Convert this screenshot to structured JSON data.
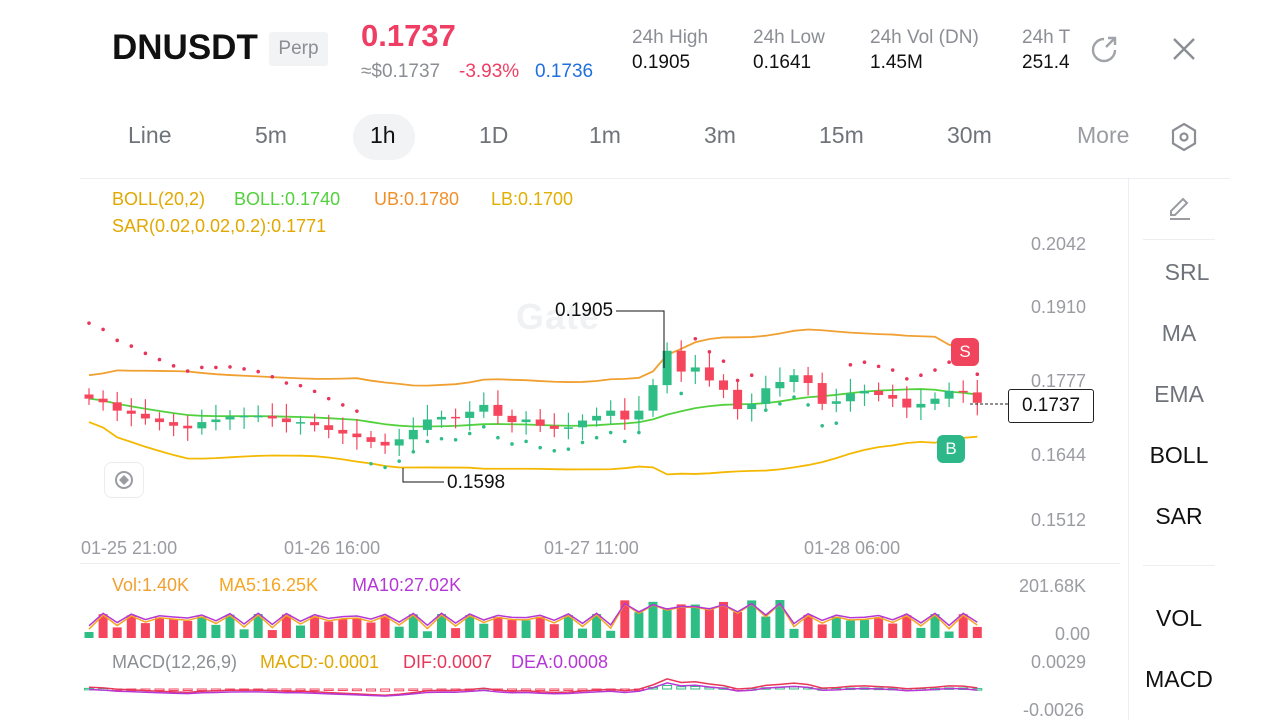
{
  "header": {
    "symbol": "DNUSDT",
    "type_badge": "Perp",
    "last_price": "0.1737",
    "usd_price": "≈$0.1737",
    "change_pct": "-3.93%",
    "mark_price": "0.1736",
    "stats": [
      {
        "label": "24h  High",
        "value": "0.1905"
      },
      {
        "label": "24h  Low",
        "value": "0.1641"
      },
      {
        "label": "24h  Vol (DN)",
        "value": "1.45M"
      },
      {
        "label": "24h  T",
        "value": "251.4"
      }
    ],
    "icons": {
      "rotate": "rotate-screen-icon",
      "close": "close-icon"
    }
  },
  "timeframes": {
    "tabs": [
      "Line",
      "5m",
      "1h",
      "1D",
      "1m",
      "3m",
      "15m",
      "30m",
      "More"
    ],
    "active": "1h",
    "settings_icon": "hexagon-settings-icon"
  },
  "indicators_main": {
    "boll_name": "BOLL(20,2)",
    "boll_mid": "BOLL:0.1740",
    "boll_ub": "UB:0.1780",
    "boll_lb": "LB:0.1700",
    "sar": "SAR(0.02,0.02,0.2):0.1771"
  },
  "price_axis": [
    "0.2042",
    "0.1910",
    "0.1777",
    "0.1644",
    "0.1512"
  ],
  "current_price_label": "0.1737",
  "time_axis": [
    "01-25 21:00",
    "01-26 16:00",
    "01-27 11:00",
    "01-28 06:00"
  ],
  "annotations": {
    "high": "0.1905",
    "low": "0.1598",
    "sell_marker": "S",
    "buy_marker": "B"
  },
  "watermark": "Gate",
  "volume_panel": {
    "vol": "Vol:1.40K",
    "ma5": "MA5:16.25K",
    "ma10": "MA10:27.02K",
    "axis_top": "201.68K",
    "axis_bottom": "0.00"
  },
  "macd_panel": {
    "name": "MACD(12,26,9)",
    "macd": "MACD:-0.0001",
    "dif": "DIF:0.0007",
    "dea": "DEA:0.0008",
    "axis_top": "0.0029",
    "axis_bottom": "-0.0026"
  },
  "side_tools": {
    "draw_icon": "pencil-icon",
    "items": [
      "SRL",
      "MA",
      "EMA",
      "BOLL",
      "SAR"
    ],
    "sub_items": [
      "VOL",
      "MACD"
    ],
    "active": [
      "BOLL",
      "SAR",
      "VOL",
      "MACD"
    ]
  },
  "colors": {
    "up": "#2ebd85",
    "down": "#f6465d",
    "boll_mid": "#52d13c",
    "boll_band": "#f0a030",
    "sar": "#e8365a",
    "ma5": "#f5a623",
    "ma10": "#b537d6",
    "accent_blue": "#1f6fde"
  },
  "chart_data": {
    "type": "candlestick",
    "interval": "1h",
    "y_range": [
      0.1512,
      0.2042
    ],
    "high": 0.1905,
    "low": 0.1598,
    "last": 0.1737,
    "candles_approx_close": [
      0.1745,
      0.1738,
      0.1722,
      0.1716,
      0.1707,
      0.17,
      0.1693,
      0.1688,
      0.17,
      0.1705,
      0.1711,
      0.1712,
      0.1712,
      0.1707,
      0.17,
      0.17,
      0.1694,
      0.1685,
      0.1678,
      0.1671,
      0.1662,
      0.1655,
      0.1667,
      0.1685,
      0.1705,
      0.171,
      0.1708,
      0.172,
      0.1733,
      0.1712,
      0.17,
      0.1705,
      0.1693,
      0.1687,
      0.169,
      0.1703,
      0.1712,
      0.1722,
      0.1705,
      0.1722,
      0.1771,
      0.1837,
      0.1797,
      0.1805,
      0.178,
      0.1762,
      0.1725,
      0.1735,
      0.1765,
      0.1777,
      0.179,
      0.1775,
      0.1735,
      0.174,
      0.1755,
      0.176,
      0.1752,
      0.1745,
      0.1728,
      0.1735,
      0.1745,
      0.176,
      0.1757,
      0.1737
    ]
  }
}
